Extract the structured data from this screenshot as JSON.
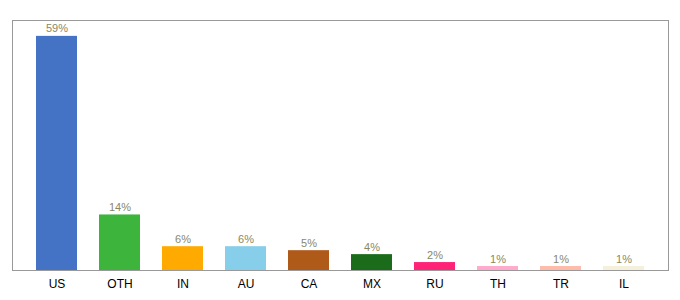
{
  "chart_data": {
    "type": "bar",
    "categories": [
      "US",
      "OTH",
      "IN",
      "AU",
      "CA",
      "MX",
      "RU",
      "TH",
      "TR",
      "IL"
    ],
    "values": [
      59,
      14,
      6,
      6,
      5,
      4,
      2,
      1,
      1,
      1
    ],
    "value_labels": [
      "59%",
      "14%",
      "6%",
      "6%",
      "5%",
      "4%",
      "2%",
      "1%",
      "1%",
      "1%"
    ],
    "colors": [
      "#4472c4",
      "#3db53d",
      "#ffaa00",
      "#87ceeb",
      "#b05a1a",
      "#1a6b1a",
      "#ff2277",
      "#ffaacc",
      "#ffbbaa",
      "#f5f0dc"
    ],
    "ylim": [
      0,
      63
    ],
    "data_labels": true,
    "tick_labels": "x",
    "grid": false
  }
}
